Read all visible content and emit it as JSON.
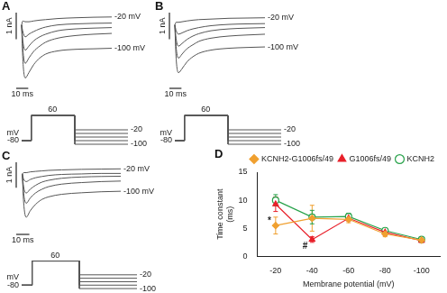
{
  "chart_data": [
    {
      "type": "line",
      "title": "A",
      "x": [
        0,
        1,
        3,
        6,
        10,
        15,
        20,
        30,
        45,
        60,
        75
      ],
      "xlim": [
        -6,
        75
      ],
      "ylim": [
        -2.8,
        0.6
      ],
      "tick_labels": false,
      "grid": false,
      "series": [
        {
          "color": "#555555",
          "values": [
            0,
            0.15,
            0.12,
            0.12,
            0.15,
            0.18,
            0.2,
            0.24,
            0.27,
            0.29,
            0.3
          ]
        },
        {
          "color": "#555555",
          "values": [
            0,
            -0.25,
            -0.45,
            -0.35,
            -0.25,
            -0.15,
            -0.08,
            0,
            0.04,
            0.06,
            0.07
          ]
        },
        {
          "color": "#555555",
          "values": [
            0,
            -0.6,
            -0.95,
            -0.8,
            -0.6,
            -0.45,
            -0.35,
            -0.22,
            -0.15,
            -0.12,
            -0.1
          ]
        },
        {
          "color": "#555555",
          "values": [
            0,
            -0.9,
            -1.45,
            -1.25,
            -1.0,
            -0.8,
            -0.65,
            -0.5,
            -0.4,
            -0.35,
            -0.32
          ]
        },
        {
          "color": "#555555",
          "values": [
            0,
            -1.3,
            -2.0,
            -1.8,
            -1.5,
            -1.25,
            -1.1,
            -0.98,
            -0.92,
            -0.9,
            -0.88
          ]
        }
      ],
      "scale_bar": {
        "x": 10,
        "x_label": "10 ms",
        "y": 1,
        "y_label": "1 nA"
      },
      "annotations": [
        {
          "text": "-20 mV",
          "x": 75,
          "y": 0.3
        },
        {
          "text": "-100 mV",
          "x": 75,
          "y": -0.88
        }
      ]
    },
    {
      "type": "line",
      "x": [
        0,
        10,
        10,
        55,
        55,
        110
      ],
      "xlim": [
        0,
        110
      ],
      "ylim": [
        -110,
        110
      ],
      "tick_labels": false,
      "grid": false,
      "ylabel": "mV",
      "series": [
        {
          "color": "#555555",
          "values": [
            -80,
            -80,
            60,
            60,
            -20,
            -20
          ]
        },
        {
          "color": "#555555",
          "values": [
            -80,
            -80,
            60,
            60,
            -40,
            -40
          ]
        },
        {
          "color": "#555555",
          "values": [
            -80,
            -80,
            60,
            60,
            -60,
            -60
          ]
        },
        {
          "color": "#555555",
          "values": [
            -80,
            -80,
            60,
            60,
            -80,
            -80
          ]
        },
        {
          "color": "#555555",
          "values": [
            -80,
            -80,
            60,
            60,
            -100,
            -100
          ]
        }
      ],
      "annotations": [
        {
          "text": "-80",
          "x": 0,
          "y": -80
        },
        {
          "text": "60",
          "x": 32,
          "y": 60
        },
        {
          "text": "-20",
          "x": 110,
          "y": -20
        },
        {
          "text": "-100",
          "x": 110,
          "y": -100
        }
      ]
    },
    {
      "type": "line",
      "title": "B",
      "x": [
        0,
        1,
        3,
        6,
        10,
        15,
        20,
        30,
        45,
        60,
        75
      ],
      "xlim": [
        -6,
        75
      ],
      "ylim": [
        -2.8,
        0.6
      ],
      "tick_labels": false,
      "grid": false,
      "series": [
        {
          "color": "#555555",
          "values": [
            0,
            0.1,
            0.1,
            0.12,
            0.15,
            0.18,
            0.2,
            0.22,
            0.25,
            0.26,
            0.27
          ]
        },
        {
          "color": "#555555",
          "values": [
            0,
            -0.2,
            -0.35,
            -0.3,
            -0.22,
            -0.15,
            -0.1,
            -0.03,
            0.02,
            0.04,
            0.05
          ]
        },
        {
          "color": "#555555",
          "values": [
            0,
            -0.5,
            -0.8,
            -0.7,
            -0.55,
            -0.42,
            -0.33,
            -0.22,
            -0.15,
            -0.12,
            -0.1
          ]
        },
        {
          "color": "#555555",
          "values": [
            0,
            -0.8,
            -1.25,
            -1.1,
            -0.9,
            -0.75,
            -0.62,
            -0.5,
            -0.42,
            -0.38,
            -0.35
          ]
        },
        {
          "color": "#555555",
          "values": [
            0,
            -1.2,
            -1.8,
            -1.65,
            -1.4,
            -1.2,
            -1.07,
            -0.95,
            -0.88,
            -0.85,
            -0.83
          ]
        }
      ],
      "scale_bar": {
        "x": 10,
        "x_label": "10 ms",
        "y": 1,
        "y_label": "1 nA"
      },
      "annotations": [
        {
          "text": "-20 mV",
          "x": 75,
          "y": 0.27
        },
        {
          "text": "-100 mV",
          "x": 75,
          "y": -0.83
        }
      ]
    },
    {
      "type": "line",
      "x": [
        0,
        10,
        10,
        55,
        55,
        110
      ],
      "xlim": [
        0,
        110
      ],
      "ylim": [
        -110,
        110
      ],
      "tick_labels": false,
      "grid": false,
      "ylabel": "mV",
      "series": [
        {
          "color": "#555555",
          "values": [
            -80,
            -80,
            60,
            60,
            -20,
            -20
          ]
        },
        {
          "color": "#555555",
          "values": [
            -80,
            -80,
            60,
            60,
            -40,
            -40
          ]
        },
        {
          "color": "#555555",
          "values": [
            -80,
            -80,
            60,
            60,
            -60,
            -60
          ]
        },
        {
          "color": "#555555",
          "values": [
            -80,
            -80,
            60,
            60,
            -80,
            -80
          ]
        },
        {
          "color": "#555555",
          "values": [
            -80,
            -80,
            60,
            60,
            -100,
            -100
          ]
        }
      ],
      "annotations": [
        {
          "text": "-80",
          "x": 0,
          "y": -80
        },
        {
          "text": "60",
          "x": 32,
          "y": 60
        },
        {
          "text": "-20",
          "x": 110,
          "y": -20
        },
        {
          "text": "-100",
          "x": 110,
          "y": -100
        }
      ]
    },
    {
      "type": "line",
      "title": "C",
      "x": [
        0,
        1,
        3,
        6,
        10,
        15,
        20,
        30,
        45,
        60,
        75
      ],
      "xlim": [
        -6,
        75
      ],
      "ylim": [
        -2.8,
        0.6
      ],
      "tick_labels": false,
      "grid": false,
      "series": [
        {
          "color": "#555555",
          "values": [
            0,
            0.05,
            0.05,
            0.08,
            0.1,
            0.12,
            0.14,
            0.16,
            0.18,
            0.19,
            0.2
          ]
        },
        {
          "color": "#555555",
          "values": [
            0,
            -0.2,
            -0.3,
            -0.22,
            -0.15,
            -0.1,
            -0.06,
            -0.02,
            0,
            0.02,
            0.02
          ]
        },
        {
          "color": "#555555",
          "values": [
            0,
            -0.5,
            -0.75,
            -0.6,
            -0.45,
            -0.32,
            -0.25,
            -0.17,
            -0.12,
            -0.1,
            -0.09
          ]
        },
        {
          "color": "#555555",
          "values": [
            0,
            -0.75,
            -1.15,
            -0.95,
            -0.75,
            -0.6,
            -0.5,
            -0.4,
            -0.34,
            -0.3,
            -0.28
          ]
        },
        {
          "color": "#555555",
          "values": [
            0,
            -1.1,
            -1.7,
            -1.45,
            -1.2,
            -1.0,
            -0.9,
            -0.8,
            -0.74,
            -0.7,
            -0.68
          ]
        }
      ],
      "scale_bar": {
        "x": 10,
        "x_label": "10 ms",
        "y": 1,
        "y_label": "1 nA"
      },
      "annotations": [
        {
          "text": "-20 mV",
          "x": 75,
          "y": 0.2
        },
        {
          "text": "-100 mV",
          "x": 75,
          "y": -0.68
        }
      ]
    },
    {
      "type": "line",
      "x": [
        0,
        10,
        10,
        55,
        55,
        110
      ],
      "xlim": [
        0,
        110
      ],
      "ylim": [
        -110,
        110
      ],
      "tick_labels": false,
      "grid": false,
      "ylabel": "mV",
      "series": [
        {
          "color": "#555555",
          "values": [
            -80,
            -80,
            60,
            60,
            -20,
            -20
          ]
        },
        {
          "color": "#555555",
          "values": [
            -80,
            -80,
            60,
            60,
            -40,
            -40
          ]
        },
        {
          "color": "#555555",
          "values": [
            -80,
            -80,
            60,
            60,
            -60,
            -60
          ]
        },
        {
          "color": "#555555",
          "values": [
            -80,
            -80,
            60,
            60,
            -80,
            -80
          ]
        },
        {
          "color": "#555555",
          "values": [
            -80,
            -80,
            60,
            60,
            -100,
            -100
          ]
        }
      ],
      "annotations": [
        {
          "text": "-80",
          "x": 0,
          "y": -80
        },
        {
          "text": "60",
          "x": 32,
          "y": 60
        },
        {
          "text": "-20",
          "x": 110,
          "y": -20
        },
        {
          "text": "-100",
          "x": 110,
          "y": -100
        }
      ]
    },
    {
      "type": "line",
      "title": "D",
      "xlabel": "Membrane potential (mV)",
      "ylabel": [
        "Time constant",
        "(ms)"
      ],
      "categories": [
        "-20",
        "-40",
        "-60",
        "-80",
        "-100"
      ],
      "ylim": [
        0,
        15
      ],
      "yticks": [
        0,
        5,
        10,
        15
      ],
      "grid": false,
      "legend": "upper right",
      "series": [
        {
          "name": "KCNH2-G1006fs/49",
          "color": "#f0a030",
          "marker": "diamond",
          "values": [
            5.5,
            6.8,
            6.6,
            4.0,
            2.9
          ],
          "errors": [
            1.5,
            2.3,
            0.6,
            0.5,
            0.3
          ]
        },
        {
          "name": "G1006fs/49",
          "color": "#e8202a",
          "marker": "triangle",
          "values": [
            9.3,
            3.0,
            6.8,
            4.3,
            2.8
          ],
          "errors": [
            1.3,
            0.5,
            0.5,
            0.6,
            0.3
          ]
        },
        {
          "name": "KCNH2",
          "color": "#27a24a",
          "marker": "open_circle",
          "values": [
            10.0,
            7.0,
            7.1,
            4.6,
            3.0
          ],
          "errors": [
            1.0,
            1.2,
            0.6,
            0.4,
            0.3
          ]
        }
      ],
      "annotations": [
        {
          "text": "*",
          "x": "-20",
          "y": 6.3
        },
        {
          "text": "#",
          "x": "-40",
          "y": 1.8
        }
      ]
    }
  ]
}
